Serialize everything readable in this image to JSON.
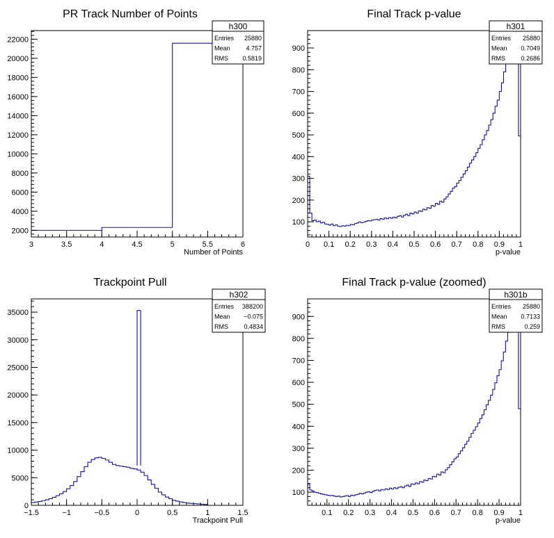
{
  "chart_data": [
    {
      "id": "h300",
      "type": "histogram",
      "title": "PR Track Number of Points",
      "xlabel": "Number of Points",
      "ylabel": "",
      "xlim": [
        3,
        6
      ],
      "ylim": [
        1300,
        22900
      ],
      "xticks": [
        3,
        3.5,
        4,
        4.5,
        5,
        5.5,
        6
      ],
      "xtick_labels": [
        "3",
        "3.5",
        "4",
        "4.5",
        "5",
        "5.5",
        "6"
      ],
      "yticks": [
        2000,
        4000,
        6000,
        8000,
        10000,
        12000,
        14000,
        16000,
        18000,
        20000,
        22000
      ],
      "ytick_labels": [
        "2000",
        "4000",
        "6000",
        "8000",
        "10000",
        "12000",
        "14000",
        "16000",
        "18000",
        "20000",
        "22000"
      ],
      "bins": {
        "edges": [
          3,
          4,
          5,
          6
        ],
        "counts": [
          2000,
          2300,
          21580
        ]
      },
      "stats": {
        "name": "h300",
        "rows": [
          [
            "Entries",
            "25880"
          ],
          [
            "Mean",
            "4.757"
          ],
          [
            "RMS",
            "0.5819"
          ]
        ]
      }
    },
    {
      "id": "h301",
      "type": "histogram",
      "title": "Final Track p-value",
      "xlabel": "p-value",
      "ylabel": "",
      "xlim": [
        0,
        1
      ],
      "ylim": [
        30,
        980
      ],
      "xticks": [
        0,
        0.1,
        0.2,
        0.3,
        0.4,
        0.5,
        0.6,
        0.7,
        0.8,
        0.9,
        1
      ],
      "xtick_labels": [
        "0",
        "0.1",
        "0.2",
        "0.3",
        "0.4",
        "0.5",
        "0.6",
        "0.7",
        "0.8",
        "0.9",
        "1"
      ],
      "yticks": [
        100,
        200,
        300,
        400,
        500,
        600,
        700,
        800,
        900
      ],
      "ytick_labels": [
        "100",
        "200",
        "300",
        "400",
        "500",
        "600",
        "700",
        "800",
        "900"
      ],
      "bins": {
        "start": 0,
        "width": 0.01,
        "counts": [
          310,
          140,
          105,
          108,
          100,
          103,
          95,
          98,
          90,
          88,
          85,
          90,
          82,
          86,
          80,
          78,
          82,
          80,
          84,
          82,
          88,
          86,
          92,
          95,
          100,
          96,
          98,
          102,
          105,
          104,
          108,
          110,
          112,
          108,
          115,
          112,
          118,
          114,
          120,
          116,
          122,
          118,
          125,
          128,
          122,
          130,
          135,
          128,
          140,
          136,
          145,
          140,
          150,
          148,
          158,
          155,
          165,
          162,
          175,
          172,
          185,
          180,
          195,
          190,
          205,
          215,
          228,
          240,
          255,
          262,
          278,
          290,
          305,
          320,
          335,
          352,
          370,
          385,
          400,
          418,
          438,
          455,
          478,
          500,
          520,
          545,
          570,
          600,
          632,
          660,
          700,
          740,
          790,
          830,
          850,
          880,
          940,
          870,
          950,
          495
        ]
      },
      "stats": {
        "name": "h301",
        "rows": [
          [
            "Entries",
            "25880"
          ],
          [
            "Mean",
            "0.7049"
          ],
          [
            "RMS",
            "0.2686"
          ]
        ]
      }
    },
    {
      "id": "h302",
      "type": "histogram",
      "title": "Trackpoint Pull",
      "xlabel": "Trackpoint Pull",
      "ylabel": "",
      "xlim": [
        -1.5,
        1.5
      ],
      "ylim": [
        0,
        37400
      ],
      "xticks": [
        -1.5,
        -1,
        -0.5,
        0,
        0.5,
        1,
        1.5
      ],
      "xtick_labels": [
        "−1.5",
        "−1",
        "−0.5",
        "0",
        "0.5",
        "1",
        "1.5"
      ],
      "yticks": [
        0,
        5000,
        10000,
        15000,
        20000,
        25000,
        30000,
        35000
      ],
      "ytick_labels": [
        "0",
        "5000",
        "10000",
        "15000",
        "20000",
        "25000",
        "30000",
        "35000"
      ],
      "bins": {
        "start": -1.5,
        "width": 0.05,
        "counts": [
          500,
          600,
          700,
          850,
          1000,
          1200,
          1450,
          1750,
          2100,
          2500,
          3000,
          3600,
          4300,
          5200,
          6100,
          7000,
          7800,
          8300,
          8600,
          8700,
          8500,
          8200,
          7800,
          7400,
          7200,
          7100,
          7000,
          6900,
          6700,
          6600,
          6400,
          6000,
          5400,
          4600,
          3800,
          3100,
          2400,
          1900,
          1500,
          1200,
          900,
          750,
          600,
          500,
          400,
          350,
          300,
          250,
          200,
          150
        ]
      },
      "spike": {
        "x0": 0,
        "x1": 0.05,
        "count": 35300
      },
      "stats": {
        "name": "h302",
        "rows": [
          [
            "Entries",
            "388200"
          ],
          [
            "Mean",
            "−0.075"
          ],
          [
            "RMS",
            "0.4834"
          ]
        ]
      }
    },
    {
      "id": "h301b",
      "type": "histogram",
      "title": "Final Track p-value (zoomed)",
      "xlabel": "p-value",
      "ylabel": "",
      "xlim": [
        0.01,
        1
      ],
      "ylim": [
        40,
        980
      ],
      "xticks": [
        0.1,
        0.2,
        0.3,
        0.4,
        0.5,
        0.6,
        0.7,
        0.8,
        0.9,
        1
      ],
      "xtick_labels": [
        "0.1",
        "0.2",
        "0.3",
        "0.4",
        "0.5",
        "0.6",
        "0.7",
        "0.8",
        "0.9",
        "1"
      ],
      "yticks": [
        100,
        200,
        300,
        400,
        500,
        600,
        700,
        800,
        900
      ],
      "ytick_labels": [
        "100",
        "200",
        "300",
        "400",
        "500",
        "600",
        "700",
        "800",
        "900"
      ],
      "bins": {
        "start": 0.01,
        "width": 0.01,
        "counts": [
          135,
          110,
          105,
          100,
          98,
          95,
          92,
          90,
          88,
          86,
          84,
          85,
          82,
          80,
          82,
          78,
          80,
          82,
          84,
          80,
          86,
          84,
          88,
          90,
          95,
          92,
          96,
          100,
          102,
          98,
          104,
          108,
          110,
          106,
          112,
          110,
          115,
          112,
          118,
          114,
          120,
          116,
          122,
          125,
          120,
          128,
          132,
          126,
          138,
          135,
          142,
          138,
          148,
          145,
          155,
          152,
          162,
          160,
          172,
          170,
          182,
          178,
          192,
          188,
          202,
          212,
          225,
          238,
          252,
          260,
          275,
          288,
          302,
          318,
          332,
          350,
          368,
          382,
          398,
          415,
          435,
          452,
          475,
          498,
          518,
          542,
          568,
          598,
          630,
          658,
          698,
          738,
          788,
          828,
          848,
          878,
          938,
          868,
          480
        ]
      },
      "stats": {
        "name": "h301b",
        "rows": [
          [
            "Entries",
            "25880"
          ],
          [
            "Mean",
            "0.7133"
          ],
          [
            "RMS",
            "0.259"
          ]
        ]
      }
    }
  ]
}
